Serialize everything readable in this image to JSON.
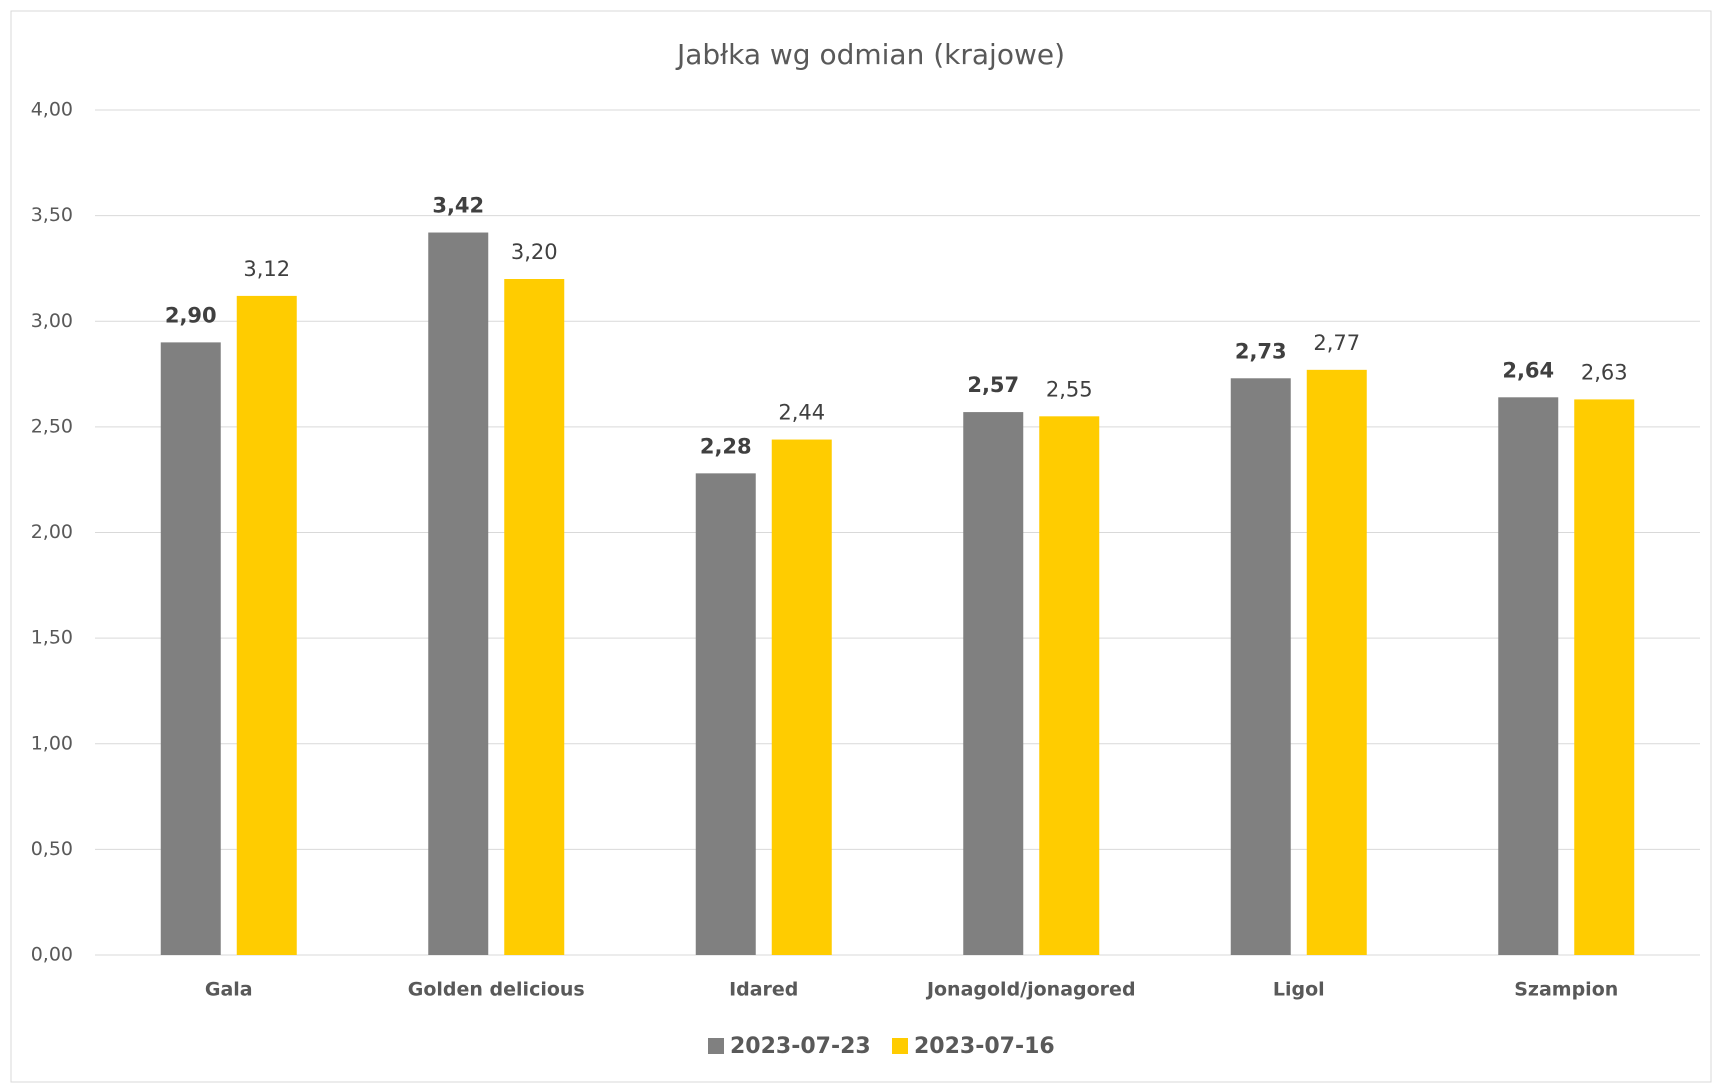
{
  "chart_data": {
    "type": "bar",
    "title": "Jabłka wg odmian (krajowe)",
    "categories": [
      "Gala",
      "Golden delicious",
      "Idared",
      "Jonagold/jonagored",
      "Ligol",
      "Szampion"
    ],
    "series": [
      {
        "name": "2023-07-23",
        "color": "#808080",
        "values": [
          2.9,
          3.42,
          2.28,
          2.57,
          2.73,
          2.64
        ],
        "value_labels": [
          "2,90",
          "3,42",
          "2,28",
          "2,57",
          "2,73",
          "2,64"
        ]
      },
      {
        "name": "2023-07-16",
        "color": "#ffcc00",
        "values": [
          3.12,
          3.2,
          2.44,
          2.55,
          2.77,
          2.63
        ],
        "value_labels": [
          "3,12",
          "3,20",
          "2,44",
          "2,55",
          "2,77",
          "2,63"
        ]
      }
    ],
    "ylim": [
      0,
      4
    ],
    "yticks": [
      {
        "value": 0,
        "label": "0,00"
      },
      {
        "value": 0.5,
        "label": "0,50"
      },
      {
        "value": 1,
        "label": "1,00"
      },
      {
        "value": 1.5,
        "label": "1,50"
      },
      {
        "value": 2,
        "label": "2,00"
      },
      {
        "value": 2.5,
        "label": "2,50"
      },
      {
        "value": 3,
        "label": "3,00"
      },
      {
        "value": 3.5,
        "label": "3,50"
      },
      {
        "value": 4,
        "label": "4,00"
      }
    ],
    "grid": true,
    "legend": "bottom"
  }
}
